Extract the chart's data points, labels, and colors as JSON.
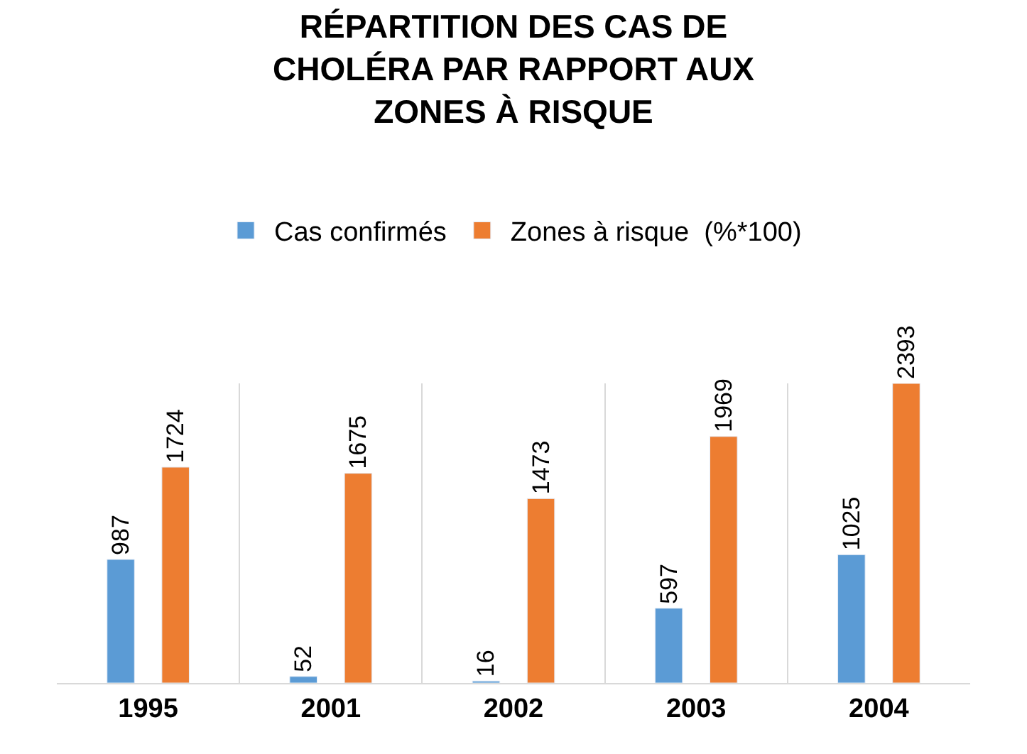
{
  "chart_data": {
    "type": "bar",
    "title": "RÉPARTITION DES CAS DE CHOLÉRA PAR RAPPORT AUX ZONES À RISQUE",
    "categories": [
      "1995",
      "2001",
      "2002",
      "2003",
      "2004"
    ],
    "series": [
      {
        "name": "Cas confirmés",
        "color": "#5b9bd5",
        "values": [
          987,
          52,
          16,
          597,
          1025
        ]
      },
      {
        "name": "Zones à risque  (%*100)",
        "color": "#ed7d31",
        "values": [
          1724,
          1675,
          1473,
          1969,
          2393
        ]
      }
    ],
    "data_labels": true,
    "grid": "x",
    "legend": "top"
  }
}
